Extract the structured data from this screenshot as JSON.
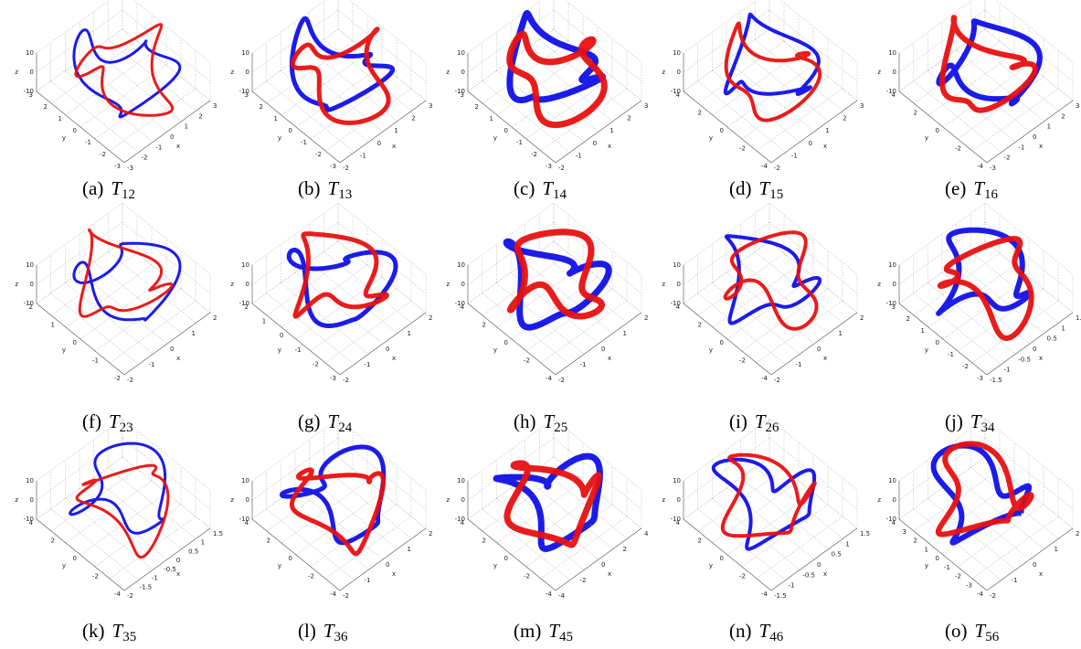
{
  "symbol": "T",
  "axes": [
    "x",
    "y",
    "z"
  ],
  "zticks": [
    10,
    0,
    -10
  ],
  "panels": [
    {
      "label": "(a)",
      "sub": "12",
      "yticks": [
        3,
        2,
        1,
        0,
        -1,
        -2,
        -3
      ],
      "xticks": [
        -3,
        -2,
        -1,
        0,
        1,
        2,
        3
      ]
    },
    {
      "label": "(b)",
      "sub": "13",
      "yticks": [
        3,
        2,
        1,
        0,
        -1,
        -2,
        -3
      ],
      "xticks": [
        -2,
        -1,
        0,
        1,
        2,
        3
      ]
    },
    {
      "label": "(c)",
      "sub": "14",
      "yticks": [
        3,
        2,
        1,
        0,
        -1,
        -2,
        -3
      ],
      "xticks": [
        -2,
        -1,
        0,
        1,
        2,
        3
      ]
    },
    {
      "label": "(d)",
      "sub": "15",
      "yticks": [
        4,
        2,
        0,
        -2,
        -4
      ],
      "xticks": [
        -2,
        -1,
        0,
        1,
        2,
        3
      ]
    },
    {
      "label": "(e)",
      "sub": "16",
      "yticks": [
        4,
        2,
        0,
        -2,
        -4
      ],
      "xticks": [
        -3,
        -2,
        -1,
        0,
        1,
        2,
        3
      ]
    },
    {
      "label": "(f)",
      "sub": "23",
      "yticks": [
        2,
        1,
        0,
        -1,
        -2
      ],
      "xticks": [
        -2,
        -1,
        0,
        1,
        2
      ]
    },
    {
      "label": "(g)",
      "sub": "24",
      "yticks": [
        2,
        1,
        0,
        -1,
        -2,
        -3
      ],
      "xticks": [
        -2,
        -1,
        0,
        1,
        2
      ]
    },
    {
      "label": "(h)",
      "sub": "25",
      "yticks": [
        4,
        2,
        0,
        -2,
        -4
      ],
      "xticks": [
        -2,
        -1,
        0,
        1,
        2
      ]
    },
    {
      "label": "(i)",
      "sub": "26",
      "yticks": [
        4,
        2,
        0,
        -2,
        -4
      ],
      "xticks": [
        -2,
        -1,
        0,
        1,
        2
      ]
    },
    {
      "label": "(j)",
      "sub": "34",
      "yticks": [
        3,
        2,
        1,
        0,
        -1,
        -2,
        -3
      ],
      "xticks": [
        -1.5,
        -1,
        -0.5,
        0,
        0.5,
        1,
        1.5
      ]
    },
    {
      "label": "(k)",
      "sub": "35",
      "yticks": [
        4,
        2,
        0,
        -2,
        -4
      ],
      "xticks": [
        -2,
        -1.5,
        -1,
        -0.5,
        0,
        0.5,
        1,
        1.5
      ]
    },
    {
      "label": "(l)",
      "sub": "36",
      "yticks": [
        4,
        2,
        0,
        -2,
        -4
      ],
      "xticks": [
        -2,
        -1,
        0,
        1,
        2
      ]
    },
    {
      "label": "(m)",
      "sub": "45",
      "yticks": [
        4,
        2,
        0,
        -2,
        -4
      ],
      "xticks": [
        -4,
        -2,
        0,
        2,
        4
      ]
    },
    {
      "label": "(n)",
      "sub": "46",
      "yticks": [
        4,
        2,
        0,
        -2,
        -4
      ],
      "xticks": [
        -1.5,
        -1,
        -0.5,
        0,
        0.5,
        1,
        1.5
      ]
    },
    {
      "label": "(o)",
      "sub": "56",
      "yticks": [
        4,
        3,
        2,
        1,
        0,
        -1,
        -2,
        -3,
        -4
      ],
      "xticks": [
        -2,
        -1,
        0,
        1,
        2
      ]
    }
  ]
}
